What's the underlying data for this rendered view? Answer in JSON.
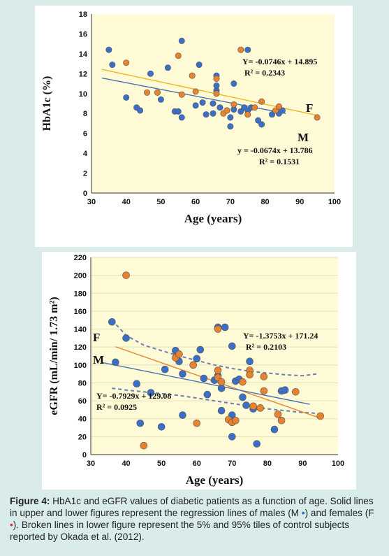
{
  "chart_data": [
    {
      "type": "scatter",
      "title": "",
      "xlabel": "Age (years)",
      "ylabel": "HbA1c (%)",
      "xlim": [
        30,
        100
      ],
      "ylim": [
        0,
        18
      ],
      "xticks": [
        "30",
        "40",
        "50",
        "60",
        "70",
        "80",
        "90",
        "100"
      ],
      "yticks": [
        "0",
        "2",
        "4",
        "6",
        "8",
        "10",
        "12",
        "14",
        "16",
        "18"
      ],
      "background": "#fffbd6",
      "series": [
        {
          "name": "M",
          "color": "#3b6fc6",
          "points": [
            [
              35,
              14.4
            ],
            [
              36,
              12.9
            ],
            [
              40,
              9.6
            ],
            [
              43,
              8.6
            ],
            [
              44,
              8.3
            ],
            [
              47,
              12.0
            ],
            [
              50,
              9.4
            ],
            [
              52,
              12.6
            ],
            [
              54,
              8.2
            ],
            [
              55,
              8.2
            ],
            [
              56,
              7.6
            ],
            [
              56,
              15.3
            ],
            [
              60,
              8.8
            ],
            [
              61,
              12.9
            ],
            [
              62,
              9.1
            ],
            [
              63,
              7.9
            ],
            [
              65,
              9.0
            ],
            [
              65,
              8.0
            ],
            [
              66,
              10.3
            ],
            [
              66,
              10.8
            ],
            [
              66,
              11.8
            ],
            [
              67,
              8.6
            ],
            [
              69,
              8.3
            ],
            [
              70,
              7.6
            ],
            [
              70,
              6.7
            ],
            [
              71,
              11.0
            ],
            [
              71,
              8.4
            ],
            [
              73,
              8.2
            ],
            [
              74,
              8.6
            ],
            [
              75,
              14.4
            ],
            [
              75,
              8.3
            ],
            [
              76,
              8.6
            ],
            [
              78,
              7.3
            ],
            [
              79,
              6.9
            ],
            [
              82,
              7.9
            ],
            [
              84,
              8.0
            ],
            [
              85,
              8.3
            ]
          ]
        },
        {
          "name": "F",
          "color": "#e8822e",
          "points": [
            [
              40,
              13.1
            ],
            [
              46,
              10.1
            ],
            [
              49,
              10.1
            ],
            [
              55,
              13.8
            ],
            [
              56,
              9.9
            ],
            [
              59,
              11.8
            ],
            [
              60,
              10.2
            ],
            [
              66,
              11.5
            ],
            [
              66,
              10.0
            ],
            [
              68,
              8.0
            ],
            [
              69,
              8.3
            ],
            [
              71,
              8.9
            ],
            [
              73,
              14.4
            ],
            [
              75,
              7.9
            ],
            [
              77,
              8.6
            ],
            [
              79,
              9.2
            ],
            [
              83,
              8.3
            ],
            [
              84,
              8.7
            ],
            [
              95,
              7.6
            ]
          ]
        }
      ],
      "regression": [
        {
          "name": "F",
          "color": "#f2b31c",
          "slope": -0.0746,
          "intercept": 14.895,
          "equation": "Y= -0.0746x + 14.895",
          "r2": "R² = 0.2343",
          "x_range": [
            33,
            95
          ]
        },
        {
          "name": "M",
          "color": "#4a72b0",
          "slope": -0.0674,
          "intercept": 13.786,
          "equation": "y = -0.0674x + 13.786",
          "r2": "R² = 0.1531",
          "x_range": [
            33,
            86
          ]
        }
      ],
      "labels": {
        "F": "F",
        "M": "M"
      }
    },
    {
      "type": "scatter",
      "title": "",
      "xlabel": "Age (years)",
      "ylabel": "eGFR (mL/min/ 1.73 m²)",
      "xlim": [
        30,
        100
      ],
      "ylim": [
        0,
        220
      ],
      "xticks": [
        "30",
        "40",
        "50",
        "60",
        "70",
        "80",
        "90",
        "100"
      ],
      "yticks": [
        "0",
        "20",
        "40",
        "60",
        "80",
        "100",
        "120",
        "140",
        "160",
        "180",
        "200",
        "220"
      ],
      "background": "#fffbd6",
      "series": [
        {
          "name": "M",
          "color": "#3b6fc6",
          "points": [
            [
              36,
              148
            ],
            [
              37,
              103
            ],
            [
              40,
              130
            ],
            [
              43,
              79
            ],
            [
              44,
              35
            ],
            [
              47,
              69
            ],
            [
              50,
              31
            ],
            [
              51,
              95
            ],
            [
              54,
              116
            ],
            [
              55,
              104
            ],
            [
              56,
              90
            ],
            [
              56,
              44
            ],
            [
              60,
              107
            ],
            [
              61,
              117
            ],
            [
              62,
              85
            ],
            [
              63,
              67
            ],
            [
              65,
              83
            ],
            [
              66,
              88
            ],
            [
              66,
              142
            ],
            [
              67,
              74
            ],
            [
              67,
              49
            ],
            [
              68,
              142
            ],
            [
              70,
              121
            ],
            [
              70,
              44
            ],
            [
              70,
              20
            ],
            [
              71,
              82
            ],
            [
              72,
              84
            ],
            [
              73,
              64
            ],
            [
              74,
              55
            ],
            [
              75,
              104
            ],
            [
              76,
              51
            ],
            [
              77,
              12
            ],
            [
              82,
              28
            ],
            [
              84,
              71
            ],
            [
              85,
              72
            ]
          ]
        },
        {
          "name": "F",
          "color": "#e8822e",
          "points": [
            [
              40,
              200
            ],
            [
              45,
              10
            ],
            [
              54,
              108
            ],
            [
              55,
              112
            ],
            [
              59,
              100
            ],
            [
              60,
              35
            ],
            [
              66,
              140
            ],
            [
              66,
              94
            ],
            [
              66,
              86
            ],
            [
              67,
              81
            ],
            [
              69,
              39
            ],
            [
              70,
              36
            ],
            [
              71,
              38
            ],
            [
              73,
              81
            ],
            [
              75,
              94
            ],
            [
              75,
              89
            ],
            [
              76,
              54
            ],
            [
              78,
              52
            ],
            [
              79,
              71
            ],
            [
              79,
              87
            ],
            [
              83,
              45
            ],
            [
              84,
              38
            ],
            [
              88,
              70
            ],
            [
              95,
              43
            ]
          ]
        }
      ],
      "regression": [
        {
          "name": "F",
          "color": "#e8822e",
          "slope": -1.3753,
          "intercept": 171.24,
          "equation": "Y= -1.3753x + 171.24",
          "r2": "R² = 0.2103",
          "x_range": [
            37,
            95
          ]
        },
        {
          "name": "M",
          "color": "#4a72b0",
          "slope": -0.7929,
          "intercept": 129.08,
          "equation": "Y= -0.7929x + 129.08",
          "r2": "R² = 0.0925",
          "x_range": [
            33,
            92
          ]
        }
      ],
      "control_bands": [
        {
          "name": "95% tile",
          "color": "#6b7fb3",
          "points": [
            [
              36,
              150
            ],
            [
              40,
              133
            ],
            [
              45,
              122
            ],
            [
              50,
              116
            ],
            [
              55,
              110
            ],
            [
              60,
              105
            ],
            [
              65,
              100
            ],
            [
              70,
              96
            ],
            [
              75,
              93
            ],
            [
              80,
              91
            ],
            [
              85,
              89
            ],
            [
              90,
              88
            ],
            [
              94,
              90
            ]
          ]
        },
        {
          "name": "5% tile",
          "color": "#6b7fb3",
          "points": [
            [
              36,
              74
            ],
            [
              40,
              72
            ],
            [
              45,
              70
            ],
            [
              50,
              68
            ],
            [
              55,
              66
            ],
            [
              60,
              63
            ],
            [
              65,
              60
            ],
            [
              70,
              57
            ],
            [
              75,
              54
            ],
            [
              80,
              51
            ],
            [
              85,
              49
            ],
            [
              90,
              47
            ],
            [
              94,
              46
            ]
          ]
        }
      ],
      "labels": {
        "F": "F",
        "M": "M"
      }
    }
  ],
  "caption": {
    "lead": "Figure 4:",
    "text1": " HbA1c and eGFR values of diabetic patients as a function of age. Solid lines in upper and lower figures represent the regression lines of males (M ",
    "dot": "•",
    "text2": ") and females (F ",
    "text3": "). Broken lines in lower figure represent the 5% and 95% tiles of control subjects reported by Okada et al. (2012)."
  }
}
